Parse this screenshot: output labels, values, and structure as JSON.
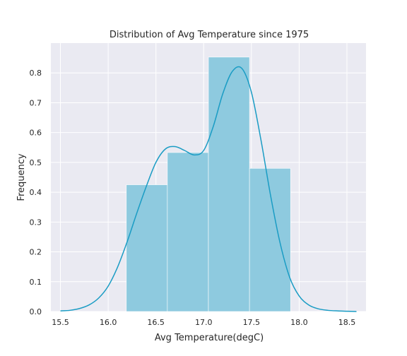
{
  "chart_data": {
    "type": "histogram",
    "title": "Distribution of Avg Temperature since 1975",
    "xlabel": "Avg Temperature(degC)",
    "ylabel": "Frequency",
    "xlim": [
      15.4,
      18.7
    ],
    "ylim": [
      0,
      0.9
    ],
    "xticks": [
      "15.5",
      "16.0",
      "16.5",
      "17.0",
      "17.5",
      "18.0",
      "18.5"
    ],
    "yticks": [
      "0.0",
      "0.1",
      "0.2",
      "0.3",
      "0.4",
      "0.5",
      "0.6",
      "0.7",
      "0.8"
    ],
    "grid": true,
    "bins": [
      {
        "x0": 16.19,
        "x1": 16.62,
        "value": 0.425
      },
      {
        "x0": 16.62,
        "x1": 17.05,
        "value": 0.533
      },
      {
        "x0": 17.05,
        "x1": 17.48,
        "value": 0.853
      },
      {
        "x0": 17.48,
        "x1": 17.91,
        "value": 0.48
      }
    ],
    "kde": {
      "x": [
        15.5,
        15.6,
        15.7,
        15.8,
        15.9,
        16.0,
        16.1,
        16.2,
        16.3,
        16.4,
        16.5,
        16.6,
        16.7,
        16.8,
        16.9,
        17.0,
        17.1,
        17.2,
        17.3,
        17.4,
        17.5,
        17.6,
        17.7,
        17.8,
        17.9,
        18.0,
        18.1,
        18.2,
        18.3,
        18.4,
        18.5,
        18.6
      ],
      "y": [
        0.002,
        0.004,
        0.01,
        0.022,
        0.045,
        0.085,
        0.15,
        0.235,
        0.33,
        0.42,
        0.5,
        0.545,
        0.553,
        0.54,
        0.525,
        0.54,
        0.62,
        0.73,
        0.805,
        0.815,
        0.735,
        0.575,
        0.39,
        0.23,
        0.115,
        0.052,
        0.022,
        0.009,
        0.004,
        0.002,
        0.001,
        0.0
      ]
    },
    "colors": {
      "background": "#eaeaf2",
      "grid": "#ffffff",
      "bar_fill": "#8ecadf",
      "bar_edge": "#ffffff",
      "kde_line": "#1a9cc4"
    }
  }
}
